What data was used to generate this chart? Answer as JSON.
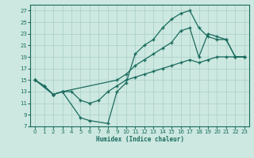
{
  "xlabel": "Humidex (Indice chaleur)",
  "xlim": [
    -0.5,
    23.5
  ],
  "ylim": [
    7,
    28
  ],
  "yticks": [
    7,
    9,
    11,
    13,
    15,
    17,
    19,
    21,
    23,
    25,
    27
  ],
  "xticks": [
    0,
    1,
    2,
    3,
    4,
    5,
    6,
    7,
    8,
    9,
    10,
    11,
    12,
    13,
    14,
    15,
    16,
    17,
    18,
    19,
    20,
    21,
    22,
    23
  ],
  "bg_color": "#cce8e0",
  "grid_color": "#a8cdc5",
  "line_color": "#1a6b5e",
  "line1_x": [
    0,
    1,
    2,
    3,
    4,
    5,
    6,
    7,
    8,
    9,
    10,
    11,
    12,
    13,
    14,
    15,
    16,
    17,
    18,
    19,
    20,
    21,
    22,
    23
  ],
  "line1_y": [
    15.0,
    14.0,
    12.5,
    13.0,
    13.0,
    11.5,
    11.0,
    11.5,
    13.0,
    14.0,
    15.0,
    15.5,
    16.0,
    16.5,
    17.0,
    17.5,
    18.0,
    18.5,
    18.0,
    18.5,
    19.0,
    19.0,
    19.0,
    19.0
  ],
  "line2_x": [
    0,
    1,
    2,
    3,
    5,
    6,
    8,
    9,
    10,
    11,
    12,
    13,
    14,
    15,
    16,
    17,
    18,
    19,
    20,
    21,
    22,
    23
  ],
  "line2_y": [
    15.0,
    14.0,
    12.5,
    13.0,
    8.5,
    8.0,
    7.5,
    13.0,
    14.5,
    19.5,
    21.0,
    22.0,
    24.0,
    25.5,
    26.5,
    27.0,
    24.0,
    22.5,
    22.0,
    22.0,
    19.0,
    19.0
  ],
  "line3_x": [
    0,
    2,
    3,
    9,
    10,
    11,
    12,
    13,
    14,
    15,
    16,
    17,
    18,
    19,
    20,
    21,
    22,
    23
  ],
  "line3_y": [
    15.0,
    12.5,
    13.0,
    15.0,
    16.0,
    17.5,
    18.5,
    19.5,
    20.5,
    21.5,
    23.5,
    24.0,
    19.0,
    23.0,
    22.5,
    22.0,
    19.0,
    19.0
  ]
}
